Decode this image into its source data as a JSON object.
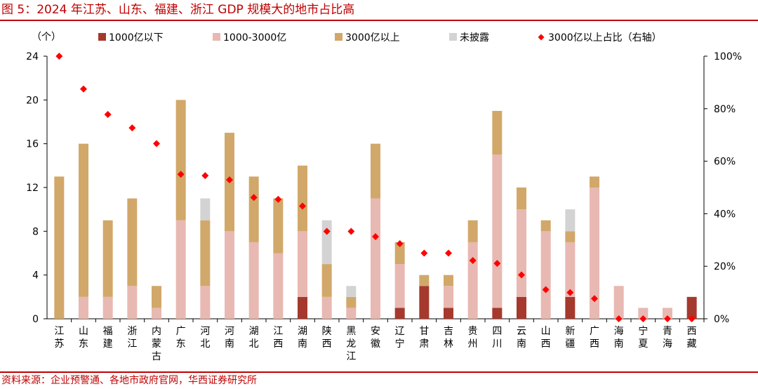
{
  "header": {
    "title": "图 5：2024 年江苏、山东、福建、浙江 GDP 规模大的地市占比高"
  },
  "footer": {
    "source": "资料来源：企业预警通、各地市政府官网，华西证券研究所"
  },
  "chart_data": {
    "type": "bar",
    "stacked": true,
    "left_axis_unit": "（个）",
    "ylim": [
      0,
      24
    ],
    "yticks": [
      0,
      4,
      8,
      12,
      16,
      20,
      24
    ],
    "y2lim": [
      0,
      100
    ],
    "y2ticks": [
      "0%",
      "20%",
      "40%",
      "60%",
      "80%",
      "100%"
    ],
    "legend_position": "top",
    "categories": [
      "江苏",
      "山东",
      "福建",
      "浙江",
      "内蒙古",
      "广东",
      "河北",
      "河南",
      "湖北",
      "江西",
      "湖南",
      "陕西",
      "黑龙江",
      "安徽",
      "辽宁",
      "甘肃",
      "吉林",
      "贵州",
      "四川",
      "云南",
      "山西",
      "新疆",
      "广西",
      "海南",
      "宁夏",
      "青海",
      "西藏"
    ],
    "series": [
      {
        "name": "1000亿以下",
        "color": "#a5392d",
        "values": [
          0,
          0,
          0,
          0,
          0,
          0,
          0,
          0,
          0,
          0,
          2,
          0,
          0,
          0,
          1,
          3,
          1,
          0,
          1,
          2,
          0,
          2,
          0,
          0,
          0,
          0,
          2
        ]
      },
      {
        "name": "1000-3000亿",
        "color": "#e8b8b2",
        "values": [
          0,
          2,
          2,
          3,
          1,
          9,
          3,
          8,
          7,
          6,
          6,
          2,
          1,
          11,
          4,
          0,
          2,
          7,
          14,
          8,
          8,
          5,
          12,
          3,
          1,
          1,
          0
        ]
      },
      {
        "name": "3000亿以上",
        "color": "#d1a869",
        "values": [
          13,
          14,
          7,
          8,
          2,
          11,
          6,
          9,
          6,
          5,
          6,
          3,
          1,
          5,
          2,
          1,
          1,
          2,
          4,
          2,
          1,
          1,
          1,
          0,
          0,
          0,
          0
        ]
      },
      {
        "name": "未披露",
        "color": "#d3d3d3",
        "values": [
          0,
          0,
          0,
          0,
          0,
          0,
          2,
          0,
          0,
          0,
          0,
          4,
          1,
          0,
          0,
          0,
          0,
          0,
          0,
          0,
          0,
          2,
          0,
          0,
          0,
          0,
          0
        ]
      }
    ],
    "secondary_series": {
      "name": "3000亿以上占比（右轴）",
      "color": "#ff0000",
      "marker": "diamond",
      "values": [
        100,
        87.5,
        77.8,
        72.7,
        66.7,
        55,
        54.5,
        52.9,
        46.2,
        45.5,
        42.9,
        33.3,
        33.3,
        31.3,
        28.6,
        25,
        25,
        22.2,
        21.1,
        16.7,
        11.1,
        10,
        7.7,
        0,
        0,
        0,
        0
      ]
    }
  }
}
